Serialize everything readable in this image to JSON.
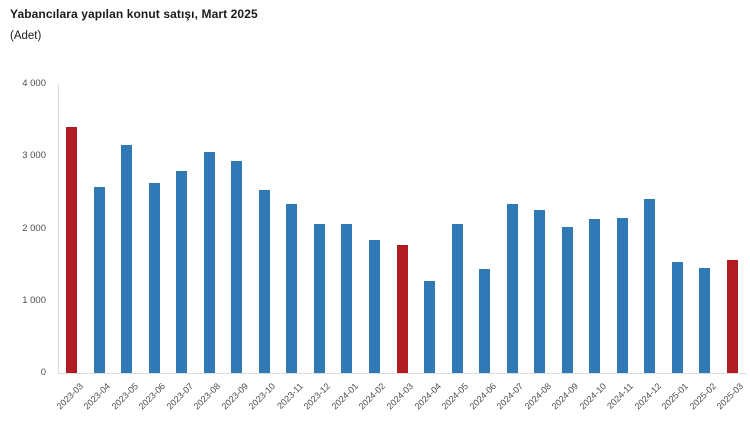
{
  "header": {
    "title": "Yabancılara yapılan konut satışı, Mart 2025",
    "subtitle": "(Adet)"
  },
  "colors": {
    "bar_default": "#2f79b7",
    "bar_highlight": "#b11c22",
    "axis_line": "#dcdcdc",
    "title_text": "#1a1a1a",
    "tick_text": "#4d4d4d",
    "background": "#ffffff"
  },
  "chart_data": {
    "type": "bar",
    "title": "Yabancılara yapılan konut satışı, Mart 2025",
    "unit_label": "(Adet)",
    "xlabel": "",
    "ylabel": "Adet",
    "categories": [
      "2023-03",
      "2023-04",
      "2023-05",
      "2023-06",
      "2023-07",
      "2023-08",
      "2023-09",
      "2023-10",
      "2023-11",
      "2023-12",
      "2024-01",
      "2024-02",
      "2024-03",
      "2024-04",
      "2024-05",
      "2024-06",
      "2024-07",
      "2024-08",
      "2024-09",
      "2024-10",
      "2024-11",
      "2024-12",
      "2025-01",
      "2025-02",
      "2025-03"
    ],
    "values": [
      3405,
      2574,
      3158,
      2625,
      2801,
      3058,
      2931,
      2535,
      2341,
      2064,
      2060,
      1837,
      1774,
      1270,
      2060,
      1441,
      2340,
      2255,
      2023,
      2125,
      2150,
      2415,
      1540,
      1450,
      1565
    ],
    "highlighted_categories": [
      "2023-03",
      "2024-03",
      "2025-03"
    ],
    "ylim": [
      0,
      4000
    ],
    "yticks": [
      0,
      1000,
      2000,
      3000,
      4000
    ],
    "ytick_labels": [
      "0",
      "1 000",
      "2 000",
      "3 000",
      "4 000"
    ],
    "grid": false,
    "legend": "none",
    "xtick_rotation": -45
  }
}
